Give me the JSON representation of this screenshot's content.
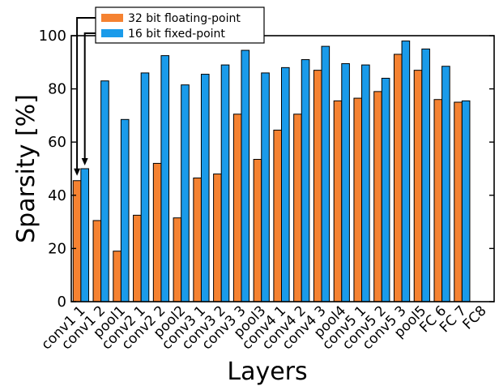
{
  "chart_data": {
    "type": "bar",
    "title": "",
    "xlabel": "Layers",
    "ylabel": "Sparsity [%]",
    "ylim": [
      0,
      100
    ],
    "yticks": [
      0,
      20,
      40,
      60,
      80,
      100
    ],
    "grid": false,
    "legend_position": "top-left",
    "categories": [
      "conv1 1",
      "conv1 2",
      "pool1",
      "conv2 1",
      "conv2 2",
      "pool2",
      "conv3 1",
      "conv3 2",
      "conv3 3",
      "pool3",
      "conv4 1",
      "conv4 2",
      "conv4 3",
      "pool4",
      "conv5 1",
      "conv5 2",
      "conv5 3",
      "pool5",
      "FC 6",
      "FC 7",
      "FC8"
    ],
    "series": [
      {
        "name": "32 bit floating-point",
        "color": "#F58231",
        "values": [
          45.5,
          30.5,
          19,
          32.5,
          52,
          31.5,
          46.5,
          48,
          70.5,
          53.5,
          64.5,
          70.5,
          87,
          75.5,
          76.5,
          79,
          93,
          87,
          76,
          75,
          null
        ]
      },
      {
        "name": "16 bit fixed-point",
        "color": "#1A9BEA",
        "values": [
          50,
          83,
          68.5,
          86,
          92.5,
          81.5,
          85.5,
          89,
          94.5,
          86,
          88,
          91,
          96,
          89.5,
          89,
          84,
          98,
          95,
          88.5,
          75.5,
          null
        ]
      }
    ]
  }
}
